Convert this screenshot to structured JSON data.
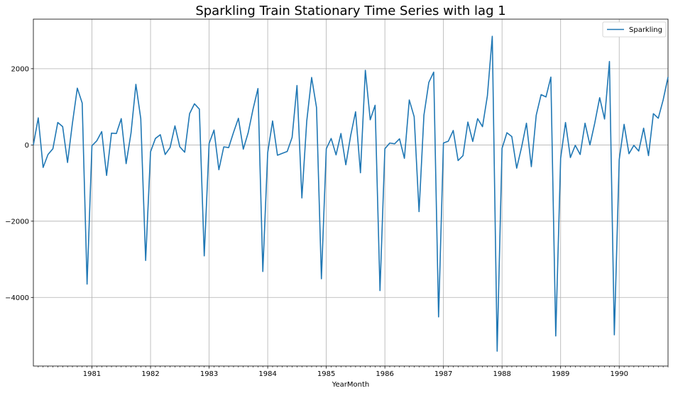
{
  "chart_data": {
    "type": "line",
    "title": "Sparkling Train Stationary Time Series with lag 1",
    "xlabel": "YearMonth",
    "ylabel": "",
    "x_start": "1980-01",
    "x_end": "1990-12",
    "frequency": "monthly",
    "x_ticks": [
      "1981",
      "1982",
      "1983",
      "1984",
      "1985",
      "1986",
      "1987",
      "1988",
      "1989",
      "1990"
    ],
    "ylim": [
      -5800,
      3300
    ],
    "y_ticks": [
      -4000,
      -2000,
      0,
      2000
    ],
    "y_tick_labels": [
      "−4000",
      "−2000",
      "0",
      "2000"
    ],
    "grid": true,
    "legend_position": "top-right",
    "series": [
      {
        "name": "Sparkling",
        "color": "#1f77b4",
        "values": [
          0,
          710,
          -590,
          -250,
          -100,
          590,
          480,
          -460,
          570,
          1490,
          1100,
          -3650,
          -20,
          110,
          350,
          -800,
          310,
          300,
          690,
          -490,
          310,
          1590,
          690,
          -3030,
          -180,
          170,
          270,
          -250,
          -70,
          500,
          -50,
          -190,
          820,
          1080,
          940,
          -2910,
          40,
          390,
          -650,
          -50,
          -70,
          330,
          700,
          -110,
          320,
          940,
          1480,
          -3320,
          -200,
          630,
          -270,
          -220,
          -170,
          200,
          1560,
          -1390,
          630,
          1770,
          980,
          -3510,
          -100,
          170,
          -260,
          300,
          -520,
          250,
          870,
          -730,
          1960,
          660,
          1040,
          -3820,
          -100,
          50,
          30,
          160,
          -350,
          1180,
          740,
          -1750,
          780,
          1640,
          1910,
          -4510,
          50,
          100,
          380,
          -410,
          -280,
          600,
          90,
          690,
          480,
          1290,
          2850,
          -5410,
          -90,
          320,
          220,
          -610,
          -60,
          570,
          -570,
          780,
          1320,
          1260,
          1780,
          -5010,
          -350,
          590,
          -330,
          -10,
          -250,
          570,
          0,
          580,
          1240,
          680,
          2190,
          -4980,
          -390,
          540,
          -230,
          -10,
          -160,
          440,
          -280,
          820,
          700,
          1180,
          1780
        ]
      }
    ]
  }
}
